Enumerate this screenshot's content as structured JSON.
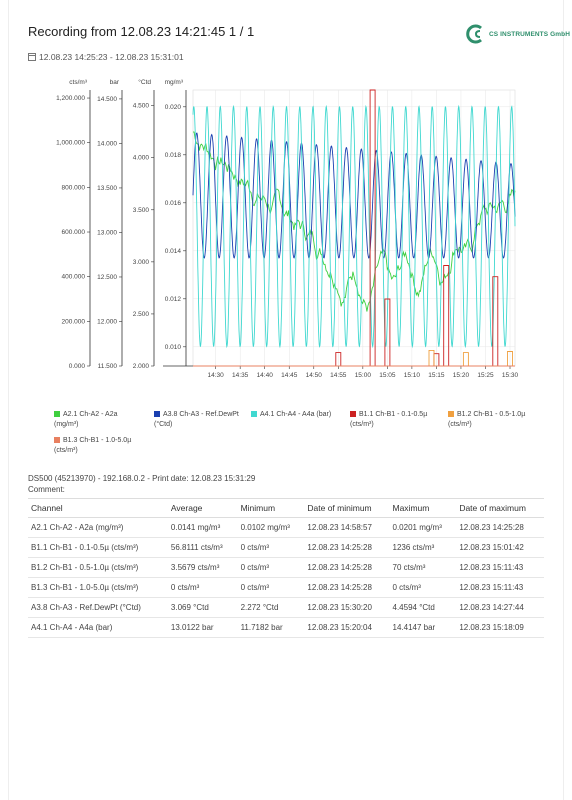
{
  "header": {
    "title": "Recording from 12.08.23 14:21:45 1 / 1",
    "range": "12.08.23 14:25:23 - 12.08.23 15:31:01",
    "logo_text": "CS INSTRUMENTS GmbH",
    "logo_color": "#2f8f6c"
  },
  "chart_data": {
    "type": "line",
    "x_ticks": [
      "14:30",
      "14:35",
      "14:40",
      "14:45",
      "14:50",
      "14:55",
      "15:00",
      "15:05",
      "15:10",
      "15:15",
      "15:20",
      "15:25",
      "15:30"
    ],
    "x_range": [
      "14:25:23",
      "15:31:01"
    ],
    "grid": true,
    "legend_position": "bottom",
    "axes": [
      {
        "unit": "cts/m³",
        "ticks": [
          "0.000",
          "200.000",
          "400.000",
          "600.000",
          "800.000",
          "1,000.000",
          "1,200.000"
        ],
        "range": [
          0,
          1236
        ]
      },
      {
        "unit": "bar",
        "ticks": [
          "11.500",
          "12.000",
          "12.500",
          "13.000",
          "13.500",
          "14.000",
          "14.500"
        ],
        "range": [
          11.5,
          14.6
        ]
      },
      {
        "unit": "°Ctd",
        "ticks": [
          "2.000",
          "2.500",
          "3.000",
          "3.500",
          "4.000",
          "4.500"
        ],
        "range": [
          2.0,
          4.65
        ]
      },
      {
        "unit": "mg/m³",
        "ticks": [
          "0.010",
          "0.012",
          "0.014",
          "0.016",
          "0.018",
          "0.020"
        ],
        "range": [
          0.0092,
          0.0207
        ]
      }
    ],
    "series": [
      {
        "name": "A2.1 Ch-A2 - A2a (mg/m³)",
        "color": "#3fcf3f",
        "axis": "mg/m³",
        "kind": "drift",
        "min": 0.0102,
        "max": 0.0201
      },
      {
        "name": "A3.8 Ch-A3 - Ref.DewPt (°Ctd)",
        "color": "#1a3fb0",
        "axis": "°Ctd",
        "kind": "osc",
        "min": 2.272,
        "max": 4.4594
      },
      {
        "name": "A4.1 Ch-A4 - A4a (bar)",
        "color": "#40d8d0",
        "axis": "bar",
        "kind": "osc",
        "min": 11.7182,
        "max": 14.4147
      },
      {
        "name": "B1.1 Ch-B1 - 0.1-0.5µ (cts/m³)",
        "color": "#cc2222",
        "axis": "cts/m³",
        "kind": "spikes",
        "spikes": [
          [
            14.55,
            60
          ],
          [
            14.75,
            55
          ],
          [
            15.02,
            1236
          ],
          [
            15.05,
            300
          ],
          [
            15.17,
            450
          ],
          [
            15.27,
            400
          ]
        ]
      },
      {
        "name": "B1.2 Ch-B1 - 0.5-1.0µ (cts/m³)",
        "color": "#f0a040",
        "axis": "cts/m³",
        "kind": "spikes",
        "spikes": [
          [
            15.14,
            70
          ],
          [
            15.21,
            60
          ],
          [
            15.3,
            65
          ]
        ]
      },
      {
        "name": "B1.3 Ch-B1 - 1.0-5.0µ (cts/m³)",
        "color": "#e88060",
        "axis": "cts/m³",
        "kind": "flat"
      }
    ]
  },
  "legend": [
    {
      "label": "A2.1 Ch-A2 - A2a",
      "unit": "(mg/m³)",
      "color": "#3fcf3f"
    },
    {
      "label": "A3.8 Ch-A3 - Ref.DewPt",
      "unit": "(°Ctd)",
      "color": "#1a3fb0"
    },
    {
      "label": "A4.1 Ch-A4 - A4a (bar)",
      "unit": "",
      "color": "#40d8d0"
    },
    {
      "label": "B1.1 Ch-B1 - 0.1-0.5µ",
      "unit": "(cts/m³)",
      "color": "#cc2222"
    },
    {
      "label": "B1.2 Ch-B1 - 0.5-1.0µ",
      "unit": "(cts/m³)",
      "color": "#f0a040"
    },
    {
      "label": "B1.3 Ch-B1 - 1.0-5.0µ",
      "unit": "(cts/m³)",
      "color": "#e88060"
    }
  ],
  "meta": {
    "device": "DS500 (45213970) - 192.168.0.2 - Print date: 12.08.23 15:31:29",
    "comment": "Comment:"
  },
  "table": {
    "headers": [
      "Channel",
      "Average",
      "Minimum",
      "Date of minimum",
      "Maximum",
      "Date of maximum"
    ],
    "rows": [
      [
        "A2.1 Ch-A2 - A2a (mg/m³)",
        "0.0141 mg/m³",
        "0.0102 mg/m³",
        "12.08.23 14:58:57",
        "0.0201 mg/m³",
        "12.08.23 14:25:28"
      ],
      [
        "B1.1 Ch-B1 - 0.1-0.5µ (cts/m³)",
        "56.8111 cts/m³",
        "0 cts/m³",
        "12.08.23 14:25:28",
        "1236 cts/m³",
        "12.08.23 15:01:42"
      ],
      [
        "B1.2 Ch-B1 - 0.5-1.0µ (cts/m³)",
        "3.5679 cts/m³",
        "0 cts/m³",
        "12.08.23 14:25:28",
        "70 cts/m³",
        "12.08.23 15:11:43"
      ],
      [
        "B1.3 Ch-B1 - 1.0-5.0µ (cts/m³)",
        "0 cts/m³",
        "0 cts/m³",
        "12.08.23 14:25:28",
        "0 cts/m³",
        "12.08.23 15:11:43"
      ],
      [
        "A3.8 Ch-A3 - Ref.DewPt (°Ctd)",
        "3.069 °Ctd",
        "2.272 °Ctd",
        "12.08.23 15:30:20",
        "4.4594 °Ctd",
        "12.08.23 14:27:44"
      ],
      [
        "A4.1 Ch-A4 - A4a (bar)",
        "13.0122 bar",
        "11.7182 bar",
        "12.08.23 15:20:04",
        "14.4147 bar",
        "12.08.23 15:18:09"
      ]
    ]
  }
}
